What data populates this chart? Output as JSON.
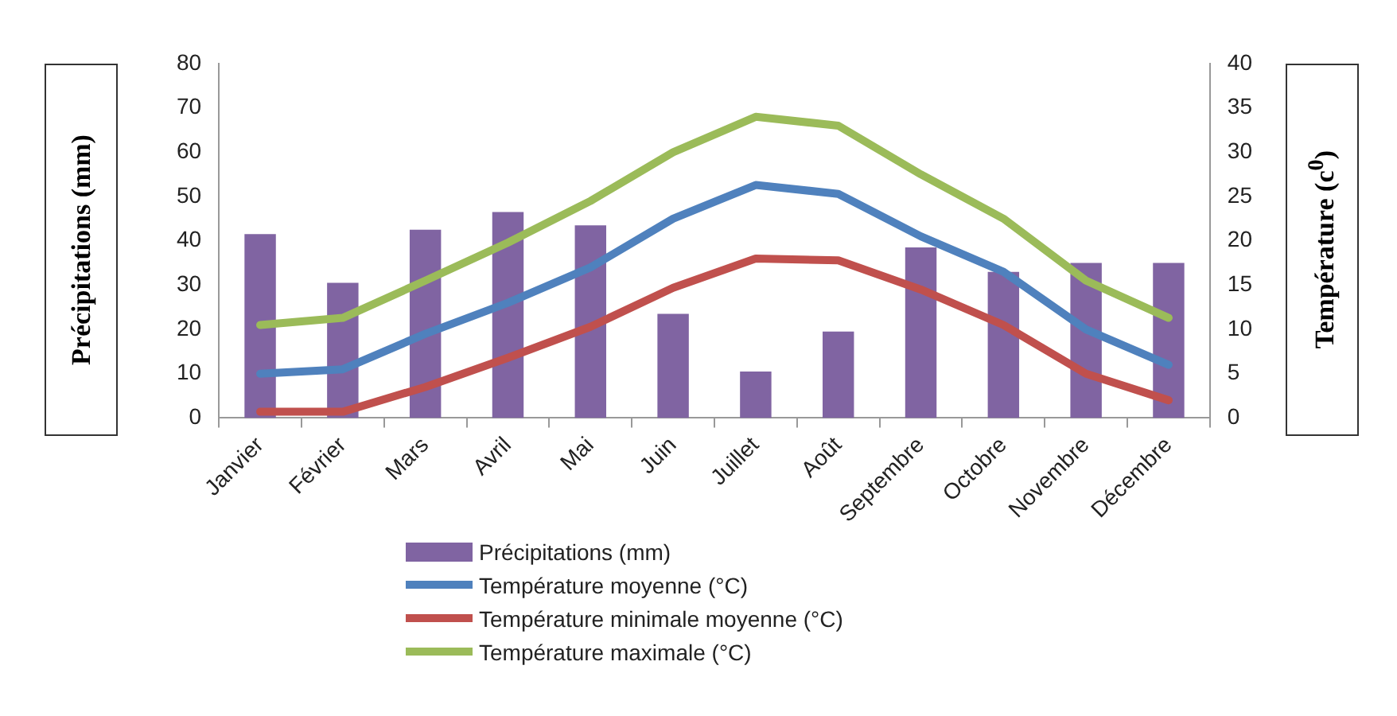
{
  "chart_data": {
    "type": "bar",
    "ylabel": "Précipitations (mm)",
    "y2label": "Température (c$^{0}$)",
    "categories": [
      "Janvier",
      "Février",
      "Mars",
      "Avril",
      "Mai",
      "Juin",
      "Juillet",
      "Août",
      "Septembre",
      "Octobre",
      "Novembre",
      "Décembre"
    ],
    "series": [
      {
        "name": "Précipitations (mm)",
        "color": "#8064a2",
        "values": [
          41.5,
          30.5,
          42.5,
          46.5,
          43.5,
          23.5,
          10.5,
          19.5,
          38.5,
          33,
          35,
          35
        ]
      },
      {
        "name": "Température moyenne (°C)",
        "type": "line",
        "axis": "y2",
        "color": "#4f81bd",
        "values": [
          5,
          5.5,
          9.5,
          13,
          17,
          22.5,
          26.3,
          25.3,
          20.5,
          16.5,
          10,
          6
        ]
      },
      {
        "name": "Température minimale moyenne (°C)",
        "type": "line",
        "axis": "y2",
        "color": "#c0504d",
        "values": [
          0.7,
          0.7,
          3.5,
          6.8,
          10.3,
          14.7,
          18,
          17.8,
          14.5,
          10.5,
          5,
          2
        ]
      },
      {
        "name": "Température maximale (°C)",
        "type": "line",
        "axis": "y2",
        "color": "#9bbb59",
        "values": [
          10.5,
          11.3,
          15.5,
          19.8,
          24.5,
          30,
          34,
          33,
          27.5,
          22.5,
          15.5,
          11.3
        ]
      }
    ],
    "ylim": [
      0,
      80
    ],
    "yticks": [
      0,
      10,
      20,
      30,
      40,
      50,
      60,
      70,
      80
    ],
    "y2lim": [
      0,
      40
    ],
    "y2ticks": [
      0,
      5,
      10,
      15,
      20,
      25,
      30,
      35,
      40
    ],
    "grid": false,
    "legend": "bottom",
    "marker": "none",
    "line_style": "solid"
  }
}
